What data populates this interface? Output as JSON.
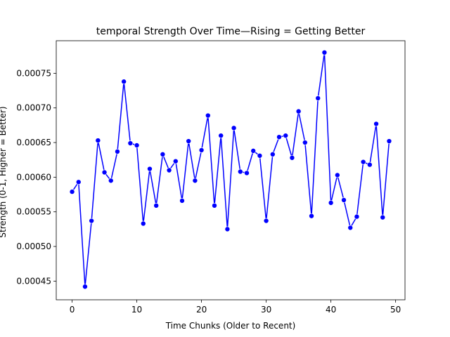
{
  "chart_data": {
    "type": "line",
    "title": "temporal Strength Over Time—Rising = Getting Better",
    "xlabel": "Time Chunks (Older to Recent)",
    "ylabel": "Strength (0-1, Higher = Better)",
    "xlim": [
      -2.45,
      51.45
    ],
    "ylim": [
      0.000423,
      0.000797
    ],
    "xticks": [
      0,
      10,
      20,
      30,
      40,
      50
    ],
    "yticks": [
      0.00045,
      0.0005,
      0.00055,
      0.0006,
      0.00065,
      0.0007,
      0.00075
    ],
    "ytick_labels": [
      "0.00045",
      "0.00050",
      "0.00055",
      "0.00060",
      "0.00065",
      "0.00070",
      "0.00075"
    ],
    "grid": false,
    "colors": {
      "line": "#0000ff",
      "marker": "#0000ff"
    },
    "x": [
      0,
      1,
      2,
      3,
      4,
      5,
      6,
      7,
      8,
      9,
      10,
      11,
      12,
      13,
      14,
      15,
      16,
      17,
      18,
      19,
      20,
      21,
      22,
      23,
      24,
      25,
      26,
      27,
      28,
      29,
      30,
      31,
      32,
      33,
      34,
      35,
      36,
      37,
      38,
      39,
      40,
      41,
      42,
      43,
      44,
      45,
      46,
      47,
      48,
      49
    ],
    "series": [
      {
        "values": [
          0.000579,
          0.000593,
          0.000442,
          0.000537,
          0.000653,
          0.000607,
          0.000595,
          0.000637,
          0.000738,
          0.000649,
          0.000646,
          0.000533,
          0.000612,
          0.000559,
          0.000633,
          0.00061,
          0.000623,
          0.000566,
          0.000652,
          0.000595,
          0.000639,
          0.000689,
          0.000559,
          0.00066,
          0.000525,
          0.000671,
          0.000608,
          0.000606,
          0.000638,
          0.000631,
          0.000537,
          0.000633,
          0.000658,
          0.00066,
          0.000628,
          0.000695,
          0.00065,
          0.000544,
          0.000714,
          0.00078,
          0.000563,
          0.000603,
          0.000567,
          0.000527,
          0.000543,
          0.000622,
          0.000618,
          0.000677,
          0.000542,
          0.000652
        ]
      }
    ]
  }
}
